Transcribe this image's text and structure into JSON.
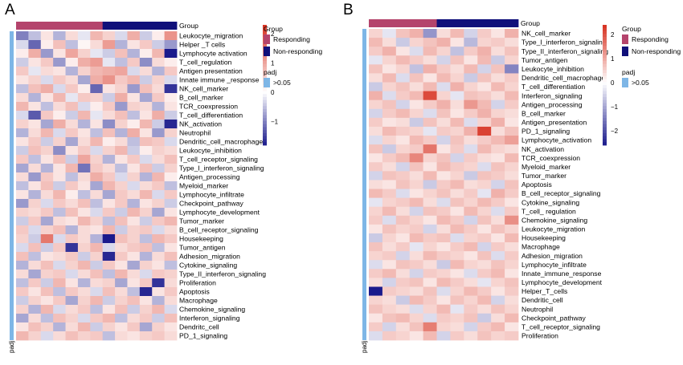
{
  "colors": {
    "responding": "#b4446c",
    "non_responding": "#10107a",
    "padj": "#7eb6e6",
    "scale_high": "#d7301f",
    "scale_mid": "#ffffff",
    "scale_low": "#1a1a8c"
  },
  "chart_data": [
    {
      "type": "heatmap",
      "panel_label": "A",
      "top_annotation_label": "Group",
      "side_annotation_label": "padj",
      "legend": {
        "group_title": "Group",
        "group_items": [
          "Responding",
          "Non-responding"
        ],
        "padj_title": "padj",
        "padj_items": [
          ">0.05"
        ],
        "scale_ticks": [
          2,
          1,
          0,
          -1
        ],
        "scale_range": [
          -1.8,
          2.3
        ]
      },
      "groups": [
        "Responding",
        "Responding",
        "Responding",
        "Responding",
        "Responding",
        "Responding",
        "Responding",
        "Non-responding",
        "Non-responding",
        "Non-responding",
        "Non-responding",
        "Non-responding",
        "Non-responding"
      ],
      "rows": [
        "Leukocyte_migration",
        "Helper _T cells",
        "Lymphocyte activation",
        "T_cell_regulation",
        "Antigen presentation",
        "Innate immune _response",
        "NK_cell_marker",
        "B_cell_marker",
        "TCR_coexpression",
        "T_cell_differentiation",
        "NK_activation",
        "Neutrophil",
        "Dendritic_cell_macrophage",
        "Leukocyte_inhibition",
        "T_cell_receptor_signaling",
        "Type_I_interferon_signaling",
        "Antigen_processing",
        "Myeloid_marker",
        "Lymphocyte_infiltrate",
        "Checkpoint_pathway",
        "Lymphocyte_development",
        "Tumor_marker",
        "B_cell_receptor_signaling",
        "Housekeeping",
        "Tumor_antigen",
        "Adhesion_migration",
        "Cytokine_signaling",
        "Type_II_interferon_signaling",
        "Proliferation",
        "Apoptosis",
        "Macrophage",
        "Chemokine_signaling",
        "Interferon_signaling",
        "Dendritc_cell",
        "PD_1_signaling"
      ],
      "values": [
        [
          -1.0,
          -0.5,
          0.3,
          -0.6,
          0.4,
          -0.2,
          0.8,
          0.5,
          -0.3,
          0.9,
          -0.4,
          0.2,
          1.2
        ],
        [
          -0.3,
          -1.2,
          0.2,
          0.7,
          -0.5,
          0.1,
          0.4,
          1.1,
          -0.6,
          0.3,
          0.6,
          -0.4,
          -0.8
        ],
        [
          0.2,
          0.9,
          -0.8,
          0.3,
          1.0,
          0.5,
          -0.2,
          -0.4,
          0.7,
          -0.6,
          0.2,
          0.8,
          -1.8
        ],
        [
          -0.4,
          0.3,
          0.6,
          -0.8,
          0.2,
          0.9,
          1.1,
          -0.2,
          -0.5,
          0.6,
          -0.9,
          0.4,
          0.2
        ],
        [
          0.6,
          -0.2,
          0.4,
          0.3,
          -0.6,
          0.5,
          0.8,
          0.9,
          1.0,
          -0.3,
          0.4,
          -0.6,
          0.6
        ],
        [
          0.3,
          0.5,
          -0.3,
          0.6,
          0.4,
          -0.7,
          0.9,
          1.2,
          0.6,
          0.8,
          -0.4,
          0.5,
          -0.3
        ],
        [
          -0.5,
          0.7,
          0.9,
          -0.3,
          0.6,
          0.2,
          -1.2,
          0.3,
          0.5,
          -0.8,
          0.7,
          0.4,
          -1.6
        ],
        [
          0.4,
          -0.6,
          0.3,
          0.8,
          -0.2,
          0.6,
          0.5,
          -0.4,
          0.9,
          0.3,
          -0.7,
          0.6,
          0.2
        ],
        [
          0.8,
          0.3,
          -0.5,
          0.4,
          0.7,
          -0.3,
          0.2,
          0.6,
          -0.8,
          0.5,
          0.4,
          -0.6,
          0.3
        ],
        [
          -0.3,
          -1.3,
          0.6,
          0.2,
          -0.4,
          0.8,
          -0.2,
          0.4,
          0.7,
          -0.5,
          0.3,
          0.9,
          -0.4
        ],
        [
          0.5,
          0.3,
          -0.7,
          0.9,
          0.4,
          -0.6,
          0.3,
          -0.9,
          0.5,
          0.2,
          0.8,
          -0.4,
          -1.7
        ],
        [
          -0.6,
          0.4,
          0.8,
          -0.3,
          0.6,
          0.3,
          -0.5,
          0.7,
          -0.6,
          0.9,
          0.3,
          -0.8,
          0.5
        ],
        [
          0.3,
          0.6,
          -0.4,
          0.5,
          -0.7,
          0.4,
          0.8,
          0.2,
          0.4,
          -0.5,
          0.7,
          0.6,
          -0.3
        ],
        [
          -0.4,
          0.7,
          0.5,
          -0.9,
          0.3,
          0.6,
          -0.3,
          0.5,
          0.8,
          -0.4,
          0.2,
          0.5,
          0.4
        ],
        [
          0.6,
          -0.5,
          0.3,
          0.7,
          -0.4,
          1.0,
          0.5,
          -0.6,
          0.3,
          0.6,
          -0.3,
          0.4,
          0.7
        ],
        [
          -0.7,
          0.4,
          -0.6,
          0.3,
          0.8,
          -1.1,
          0.6,
          0.4,
          -0.5,
          0.3,
          0.7,
          -0.4,
          0.5
        ],
        [
          0.4,
          -0.8,
          0.6,
          0.3,
          -0.5,
          0.4,
          0.9,
          0.6,
          -0.3,
          0.5,
          -0.6,
          0.8,
          0.2
        ],
        [
          -0.5,
          0.3,
          0.7,
          -0.4,
          0.6,
          0.3,
          -0.7,
          0.8,
          0.5,
          -0.3,
          0.4,
          0.6,
          -0.5
        ],
        [
          0.3,
          -0.6,
          0.4,
          0.8,
          0.2,
          -0.5,
          0.4,
          -0.7,
          0.6,
          0.4,
          0.8,
          -0.3,
          0.6
        ],
        [
          -0.8,
          0.5,
          -0.3,
          0.6,
          0.4,
          0.7,
          -0.5,
          0.3,
          0.6,
          -0.6,
          0.3,
          0.5,
          -0.4
        ],
        [
          0.5,
          0.4,
          0.6,
          -0.5,
          0.7,
          0.3,
          -0.3,
          0.6,
          -0.4,
          0.8,
          0.5,
          -0.7,
          0.3
        ],
        [
          -0.4,
          0.6,
          -0.7,
          0.4,
          0.3,
          0.8,
          0.5,
          -0.5,
          0.7,
          0.3,
          -0.4,
          0.6,
          0.8
        ],
        [
          0.6,
          -0.3,
          0.5,
          0.7,
          -0.6,
          0.4,
          0.3,
          0.8,
          -0.4,
          0.5,
          0.6,
          -0.3,
          0.4
        ],
        [
          0.5,
          -0.4,
          1.5,
          -0.3,
          0.6,
          0.4,
          -0.6,
          -1.8,
          0.7,
          0.5,
          -0.5,
          0.8,
          0.6
        ],
        [
          -0.3,
          0.7,
          -0.4,
          0.6,
          -1.6,
          0.5,
          0.8,
          -0.3,
          0.4,
          0.6,
          0.7,
          -0.5,
          0.3
        ],
        [
          0.7,
          -0.5,
          0.3,
          0.4,
          0.6,
          -0.4,
          0.5,
          -1.7,
          0.6,
          0.3,
          -0.6,
          0.4,
          0.7
        ],
        [
          -0.6,
          0.4,
          0.7,
          -0.3,
          0.5,
          0.8,
          -0.4,
          0.6,
          0.3,
          -0.7,
          0.5,
          0.3,
          -0.5
        ],
        [
          0.4,
          -0.7,
          0.5,
          0.6,
          -0.3,
          0.4,
          0.7,
          -0.5,
          0.8,
          0.4,
          -0.3,
          0.6,
          0.5
        ],
        [
          -0.5,
          0.6,
          -0.4,
          0.8,
          0.3,
          -0.6,
          0.4,
          0.5,
          -0.7,
          0.3,
          0.6,
          -1.6,
          0.4
        ],
        [
          0.6,
          0.3,
          0.7,
          -0.5,
          0.6,
          0.4,
          -0.3,
          0.7,
          0.4,
          -0.5,
          -1.7,
          0.3,
          0.6
        ],
        [
          -0.4,
          0.5,
          0.3,
          0.6,
          -0.7,
          0.5,
          0.8,
          -0.4,
          0.5,
          0.7,
          0.3,
          -0.6,
          0.4
        ],
        [
          0.5,
          -0.6,
          0.8,
          -0.3,
          0.4,
          0.6,
          -0.5,
          0.3,
          0.7,
          -0.4,
          0.5,
          0.8,
          -0.3
        ],
        [
          -0.7,
          0.4,
          -0.5,
          0.7,
          0.5,
          -0.3,
          0.6,
          0.8,
          -0.5,
          0.4,
          0.6,
          -0.4,
          0.7
        ],
        [
          0.3,
          0.7,
          0.5,
          -0.6,
          0.4,
          0.8,
          -0.4,
          0.5,
          0.3,
          0.6,
          -0.7,
          0.5,
          0.3
        ],
        [
          0.8,
          0.5,
          -0.3,
          0.4,
          0.7,
          0.5,
          0.6,
          -0.5,
          0.4,
          0.3,
          0.5,
          0.6,
          0.4
        ]
      ]
    },
    {
      "type": "heatmap",
      "panel_label": "B",
      "top_annotation_label": "Group",
      "side_annotation_label": "padj",
      "legend": {
        "group_title": "Group",
        "group_items": [
          "Responding",
          "Non-responding"
        ],
        "padj_title": "padj",
        "padj_items": [
          ">0.05"
        ],
        "scale_ticks": [
          2,
          1,
          0,
          -1,
          -2
        ],
        "scale_range": [
          -2.6,
          2.4
        ]
      },
      "groups": [
        "Responding",
        "Responding",
        "Responding",
        "Responding",
        "Responding",
        "Non-responding",
        "Non-responding",
        "Non-responding",
        "Non-responding",
        "Non-responding",
        "Non-responding"
      ],
      "rows": [
        "NK_cell_marker",
        "Type_I_interferon_signaling",
        "Type_II_interferon_signaling",
        "Tumor_antigen",
        "Leukocyte_inhibition",
        "Dendritic_cell_macrophage",
        "T_cell_differentiation",
        "Interferon_signaling",
        "Antigen_processing",
        "B_cell_marker",
        "Antigen_presentation",
        "PD_1_signaling",
        "Lymphocyte_activation",
        "NK_activation",
        "TCR_coexpression",
        "Myeloid_marker",
        "Tumor_marker",
        "Apoptosis",
        "B_cell_receptor_signaling",
        "Cytokine_signaling",
        "T_cell_ regulation",
        "Chemokine_signaling",
        "Leukocyte_migration",
        "Housekeeping",
        "Macrophage",
        "Adhesion_migration",
        "Lymphocyte_infiltrate",
        "Innate_immune_response",
        "Lymphocyte_development",
        "Helper_T_cells",
        "Dendritic_cell",
        "Neutrophil",
        "Checkpoint_pathway",
        "T_cell_receptor_signaling",
        "Proliferation"
      ],
      "values": [
        [
          0.5,
          -0.3,
          0.7,
          0.9,
          -1.2,
          0.4,
          0.8,
          -0.5,
          0.6,
          0.3,
          0.9
        ],
        [
          0.8,
          0.4,
          -0.6,
          0.5,
          0.7,
          0.9,
          0.3,
          -0.8,
          0.5,
          0.6,
          0.4
        ],
        [
          0.6,
          0.9,
          0.3,
          -0.4,
          0.8,
          0.5,
          -0.7,
          0.6,
          0.9,
          0.4,
          0.7
        ],
        [
          -0.3,
          0.5,
          0.8,
          0.6,
          0.4,
          -0.5,
          0.7,
          0.3,
          0.8,
          -0.6,
          0.5
        ],
        [
          0.7,
          0.3,
          0.5,
          -0.7,
          0.9,
          0.6,
          0.4,
          0.8,
          -0.5,
          0.7,
          -1.4
        ],
        [
          0.4,
          0.8,
          -0.4,
          0.7,
          0.3,
          0.8,
          0.5,
          -0.6,
          0.7,
          0.4,
          0.6
        ],
        [
          -0.6,
          0.5,
          0.7,
          0.4,
          0.8,
          -0.4,
          0.9,
          0.5,
          0.3,
          0.8,
          0.5
        ],
        [
          0.9,
          -0.4,
          0.6,
          0.8,
          2.1,
          0.5,
          -0.3,
          0.7,
          0.6,
          0.4,
          0.8
        ],
        [
          0.5,
          0.7,
          -0.5,
          0.3,
          0.6,
          0.9,
          0.4,
          1.2,
          0.8,
          -0.5,
          0.6
        ],
        [
          -0.5,
          0.6,
          0.8,
          0.5,
          -0.4,
          0.7,
          0.3,
          0.6,
          0.9,
          0.5,
          0.4
        ],
        [
          0.6,
          0.3,
          0.4,
          -0.6,
          0.7,
          0.4,
          0.8,
          -0.4,
          0.5,
          0.9,
          0.3
        ],
        [
          0.4,
          0.8,
          0.6,
          0.5,
          -0.3,
          0.6,
          0.5,
          0.9,
          2.2,
          0.4,
          0.7
        ],
        [
          -0.4,
          0.5,
          0.3,
          0.8,
          0.6,
          -0.5,
          0.7,
          0.4,
          0.6,
          0.8,
          1.1
        ],
        [
          0.7,
          -0.6,
          0.5,
          0.6,
          1.6,
          0.3,
          0.6,
          -0.4,
          0.8,
          0.5,
          0.4
        ],
        [
          0.3,
          0.6,
          0.8,
          1.4,
          0.5,
          0.7,
          -0.5,
          0.6,
          0.4,
          0.3,
          0.8
        ],
        [
          0.6,
          0.4,
          -0.5,
          0.7,
          0.3,
          0.8,
          0.6,
          0.5,
          -0.4,
          0.7,
          0.5
        ],
        [
          -0.5,
          0.7,
          0.6,
          0.4,
          0.8,
          0.3,
          0.5,
          -0.6,
          0.7,
          0.6,
          0.4
        ],
        [
          0.4,
          0.3,
          0.7,
          0.5,
          -0.6,
          0.6,
          0.8,
          0.4,
          0.5,
          -0.5,
          0.7
        ],
        [
          0.8,
          0.6,
          -0.4,
          0.3,
          0.5,
          0.7,
          0.4,
          0.6,
          -0.3,
          0.9,
          0.6
        ],
        [
          -0.3,
          0.5,
          0.6,
          0.8,
          0.4,
          -0.4,
          0.7,
          0.5,
          0.8,
          0.6,
          0.3
        ],
        [
          0.5,
          0.8,
          0.4,
          -0.5,
          0.7,
          0.6,
          0.3,
          0.8,
          0.5,
          -0.4,
          0.6
        ],
        [
          0.6,
          -0.4,
          0.7,
          0.5,
          0.3,
          0.8,
          0.6,
          -0.5,
          0.7,
          0.4,
          1.3
        ],
        [
          0.3,
          0.7,
          0.5,
          0.6,
          -0.5,
          0.4,
          0.8,
          0.6,
          0.3,
          0.7,
          0.5
        ],
        [
          -0.6,
          0.5,
          0.3,
          0.8,
          0.6,
          0.7,
          -0.4,
          0.5,
          0.6,
          0.3,
          0.8
        ],
        [
          0.7,
          0.4,
          0.6,
          -0.3,
          0.5,
          0.3,
          0.6,
          0.8,
          -0.5,
          0.6,
          0.4
        ],
        [
          0.5,
          0.6,
          -0.5,
          0.4,
          0.8,
          0.6,
          0.5,
          0.3,
          0.7,
          -0.4,
          0.6
        ],
        [
          -0.4,
          0.3,
          0.7,
          0.6,
          0.4,
          -0.6,
          0.8,
          0.5,
          0.4,
          0.7,
          0.5
        ],
        [
          0.6,
          0.8,
          0.4,
          -0.5,
          0.6,
          0.5,
          0.3,
          -0.4,
          0.6,
          0.8,
          0.3
        ],
        [
          0.4,
          -0.5,
          0.6,
          0.7,
          0.3,
          0.8,
          0.6,
          0.4,
          -0.3,
          0.5,
          0.7
        ],
        [
          -2.6,
          0.6,
          0.5,
          0.4,
          0.7,
          -0.4,
          0.5,
          0.8,
          0.6,
          0.3,
          0.6
        ],
        [
          0.5,
          0.4,
          -0.6,
          0.8,
          0.6,
          0.3,
          0.7,
          0.5,
          0.8,
          -0.5,
          0.4
        ],
        [
          0.7,
          0.5,
          0.4,
          -0.4,
          0.5,
          0.8,
          -0.3,
          0.6,
          0.4,
          0.7,
          0.5
        ],
        [
          0.3,
          0.7,
          0.8,
          0.5,
          -0.4,
          0.6,
          0.5,
          0.7,
          -0.6,
          0.4,
          0.8
        ],
        [
          0.6,
          -0.5,
          0.4,
          0.7,
          1.5,
          0.5,
          0.4,
          -0.5,
          0.6,
          0.8,
          0.3
        ],
        [
          -0.4,
          0.6,
          0.5,
          0.3,
          0.8,
          -0.5,
          0.6,
          0.4,
          0.7,
          0.5,
          0.6
        ]
      ]
    }
  ]
}
